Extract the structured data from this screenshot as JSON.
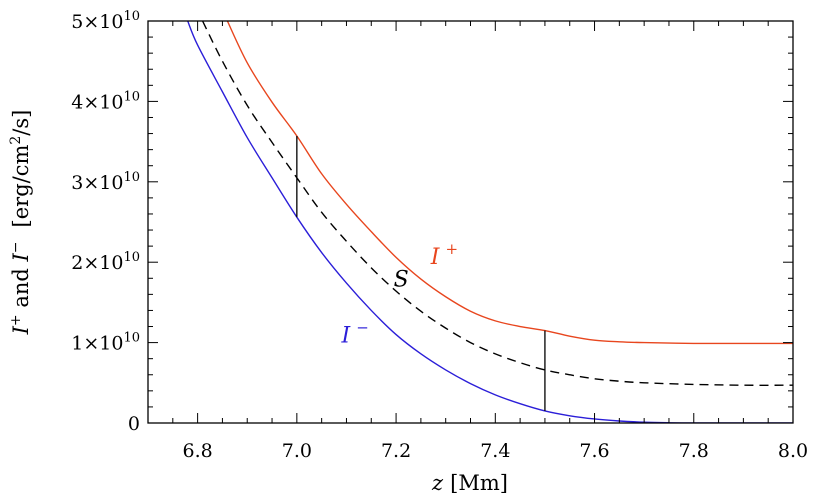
{
  "chart_data": {
    "type": "line",
    "xlabel": {
      "var": "z",
      "unit": "[Mm]"
    },
    "ylabel": {
      "a": "I",
      "a_sup": "+",
      "mid": " and ",
      "b": "I",
      "b_sup": "−",
      "unit_pre": "[erg/cm",
      "unit_sup": "2",
      "unit_post": "/s]"
    },
    "xlim": [
      6.7,
      8.0
    ],
    "ylim": [
      0,
      50000000000.0
    ],
    "x_ticks": [
      {
        "value": 6.8,
        "label": "6.8"
      },
      {
        "value": 7.0,
        "label": "7.0"
      },
      {
        "value": 7.2,
        "label": "7.2"
      },
      {
        "value": 7.4,
        "label": "7.4"
      },
      {
        "value": 7.6,
        "label": "7.6"
      },
      {
        "value": 7.8,
        "label": "7.8"
      },
      {
        "value": 8.0,
        "label": "8.0"
      }
    ],
    "y_ticks": [
      {
        "value": 0,
        "mant": "0",
        "exp": ""
      },
      {
        "value": 10000000000.0,
        "mant": "1×10",
        "exp": "10"
      },
      {
        "value": 20000000000.0,
        "mant": "2×10",
        "exp": "10"
      },
      {
        "value": 30000000000.0,
        "mant": "3×10",
        "exp": "10"
      },
      {
        "value": 40000000000.0,
        "mant": "4×10",
        "exp": "10"
      },
      {
        "value": 50000000000.0,
        "mant": "5×10",
        "exp": "10"
      }
    ],
    "series": [
      {
        "name": "I+",
        "color": "#e8461e",
        "style": "solid",
        "x": [
          6.86,
          6.9,
          6.95,
          7.0,
          7.05,
          7.1,
          7.15,
          7.2,
          7.25,
          7.3,
          7.35,
          7.4,
          7.45,
          7.5,
          7.55,
          7.6,
          7.65,
          7.7,
          7.8,
          7.9,
          8.0
        ],
        "y": [
          50000000000.0,
          44800000000.0,
          39900000000.0,
          35700000000.0,
          31000000000.0,
          27200000000.0,
          23800000000.0,
          20600000000.0,
          17900000000.0,
          15700000000.0,
          13900000000.0,
          12700000000.0,
          12000000000.0,
          11500000000.0,
          10800000000.0,
          10300000000.0,
          10100000000.0,
          10000000000.0,
          9900000000.0,
          9900000000.0,
          9900000000.0
        ]
      },
      {
        "name": "S",
        "color": "#000000",
        "style": "dashed",
        "x": [
          6.81,
          6.85,
          6.9,
          6.95,
          7.0,
          7.05,
          7.1,
          7.15,
          7.2,
          7.25,
          7.3,
          7.35,
          7.4,
          7.45,
          7.5,
          7.55,
          7.6,
          7.65,
          7.7,
          7.8,
          7.9,
          8.0
        ],
        "y": [
          50000000000.0,
          45000000000.0,
          39500000000.0,
          34900000000.0,
          30500000000.0,
          26200000000.0,
          22600000000.0,
          19300000000.0,
          16400000000.0,
          13900000000.0,
          11800000000.0,
          10000000000.0,
          8600000000.0,
          7500000000.0,
          6600000000.0,
          6000000000.0,
          5500000000.0,
          5200000000.0,
          5000000000.0,
          4800000000.0,
          4700000000.0,
          4700000000.0
        ]
      },
      {
        "name": "I−",
        "color": "#2b1ed8",
        "style": "solid",
        "x": [
          6.78,
          6.8,
          6.85,
          6.9,
          6.95,
          7.0,
          7.05,
          7.1,
          7.15,
          7.2,
          7.25,
          7.3,
          7.35,
          7.4,
          7.45,
          7.5,
          7.55,
          7.6,
          7.65,
          7.7,
          7.75,
          7.8,
          7.9,
          8.0
        ],
        "y": [
          50000000000.0,
          47000000000.0,
          41200000000.0,
          35500000000.0,
          30500000000.0,
          25600000000.0,
          21200000000.0,
          17400000000.0,
          14000000000.0,
          11000000000.0,
          8600000000.0,
          6600000000.0,
          4900000000.0,
          3500000000.0,
          2400000000.0,
          1500000000.0,
          900000000.0,
          500000000.0,
          250000000.0,
          100000000.0,
          30000000.0,
          0.0,
          0.0,
          0.0
        ]
      }
    ],
    "markers": [
      {
        "x": 7.0,
        "y_low": 25600000000.0,
        "y_high": 35700000000.0
      },
      {
        "x": 7.5,
        "y_low": 1500000000.0,
        "y_high": 11500000000.0
      }
    ],
    "annotations": [
      {
        "var": "I",
        "sup": "+",
        "x": 7.27,
        "y": 19800000000.0,
        "color": "#e8461e"
      },
      {
        "var": "S",
        "sup": "",
        "x": 7.195,
        "y": 17000000000.0,
        "color": "#000000"
      },
      {
        "var": "I",
        "sup": "−",
        "x": 7.09,
        "y": 10000000000.0,
        "color": "#2b1ed8"
      }
    ]
  }
}
